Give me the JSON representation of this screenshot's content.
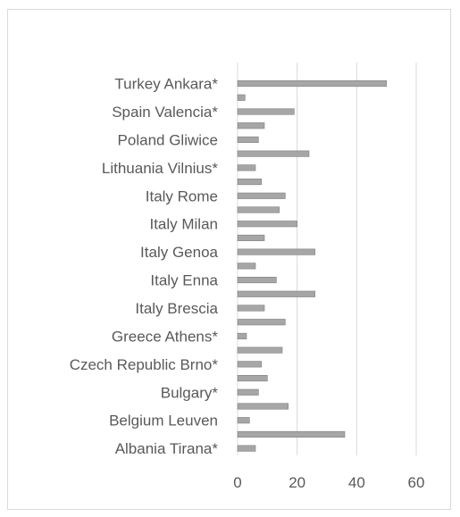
{
  "chart_data": {
    "type": "bar",
    "orientation": "horizontal",
    "title": "",
    "xlabel": "",
    "ylabel": "",
    "xlim": [
      0,
      60
    ],
    "xticks": [
      0,
      20,
      40,
      60
    ],
    "grid": true,
    "bar_color": "#a6a6a6",
    "categories": [
      "Albania Tirana*",
      "",
      "Belgium Leuven",
      "",
      "Bulgary*",
      "",
      "Czech Republic Brno*",
      "",
      "Greece Athens*",
      "",
      "Italy Brescia",
      "",
      "Italy Enna",
      "",
      "Italy Genoa",
      "",
      "Italy Milan",
      "",
      "Italy Rome",
      "",
      "Lithuania Vilnius*",
      "",
      "Poland Gliwice",
      "",
      "Spain Valencia*",
      "",
      "Turkey Ankara*",
      ""
    ],
    "values": [
      6,
      36,
      4,
      17,
      7,
      10,
      8,
      15,
      3,
      16,
      9,
      26,
      13,
      6,
      26,
      9,
      20,
      14,
      16,
      8,
      6,
      24,
      7,
      9,
      19,
      2.5,
      50,
      0
    ]
  }
}
